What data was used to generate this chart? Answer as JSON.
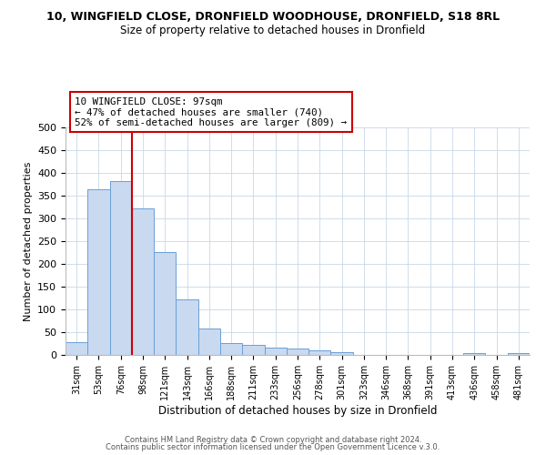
{
  "title_line1": "10, WINGFIELD CLOSE, DRONFIELD WOODHOUSE, DRONFIELD, S18 8RL",
  "title_line2": "Size of property relative to detached houses in Dronfield",
  "xlabel": "Distribution of detached houses by size in Dronfield",
  "ylabel": "Number of detached properties",
  "bin_labels": [
    "31sqm",
    "53sqm",
    "76sqm",
    "98sqm",
    "121sqm",
    "143sqm",
    "166sqm",
    "188sqm",
    "211sqm",
    "233sqm",
    "256sqm",
    "278sqm",
    "301sqm",
    "323sqm",
    "346sqm",
    "368sqm",
    "391sqm",
    "413sqm",
    "436sqm",
    "458sqm",
    "481sqm"
  ],
  "bar_values": [
    28,
    365,
    382,
    323,
    226,
    122,
    58,
    27,
    22,
    17,
    14,
    10,
    6,
    0,
    0,
    0,
    0,
    0,
    5,
    0,
    4
  ],
  "bar_color": "#c9d9f0",
  "bar_edge_color": "#6a9fd8",
  "vline_color": "#cc0000",
  "annotation_title": "10 WINGFIELD CLOSE: 97sqm",
  "annotation_line2": "← 47% of detached houses are smaller (740)",
  "annotation_line3": "52% of semi-detached houses are larger (809) →",
  "annotation_box_color": "#ffffff",
  "annotation_box_edge": "#cc0000",
  "ylim": [
    0,
    500
  ],
  "yticks": [
    0,
    50,
    100,
    150,
    200,
    250,
    300,
    350,
    400,
    450,
    500
  ],
  "footer_line1": "Contains HM Land Registry data © Crown copyright and database right 2024.",
  "footer_line2": "Contains public sector information licensed under the Open Government Licence v.3.0.",
  "background_color": "#ffffff",
  "grid_color": "#c8d8e8"
}
